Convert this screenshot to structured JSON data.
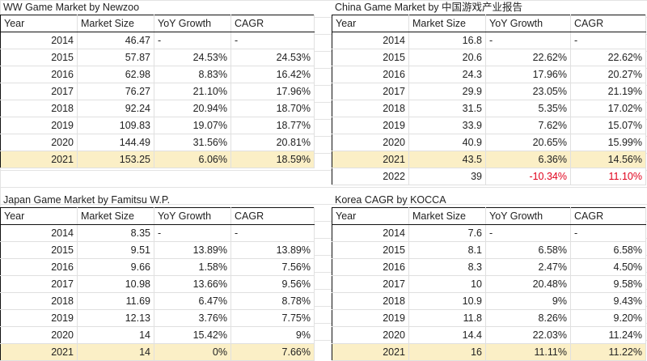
{
  "headers": [
    "Year",
    "Market Size",
    "YoY Growth",
    "CAGR"
  ],
  "tables": {
    "ww": {
      "title": "WW Game Market by Newzoo",
      "rows": [
        [
          "2014",
          "46.47",
          "-",
          "-"
        ],
        [
          "2015",
          "57.87",
          "24.53%",
          "24.53%"
        ],
        [
          "2016",
          "62.98",
          "8.83%",
          "16.42%"
        ],
        [
          "2017",
          "76.27",
          "21.10%",
          "17.96%"
        ],
        [
          "2018",
          "92.24",
          "20.94%",
          "18.70%"
        ],
        [
          "2019",
          "109.83",
          "19.07%",
          "18.77%"
        ],
        [
          "2020",
          "144.49",
          "31.56%",
          "20.81%"
        ],
        [
          "2021",
          "153.25",
          "6.06%",
          "18.59%"
        ]
      ]
    },
    "china": {
      "title": "China Game Market by 中国游戏产业报告",
      "rows": [
        [
          "2014",
          "16.8",
          "-",
          "-"
        ],
        [
          "2015",
          "20.6",
          "22.62%",
          "22.62%"
        ],
        [
          "2016",
          "24.3",
          "17.96%",
          "20.27%"
        ],
        [
          "2017",
          "29.9",
          "23.05%",
          "21.19%"
        ],
        [
          "2018",
          "31.5",
          "5.35%",
          "17.02%"
        ],
        [
          "2019",
          "33.9",
          "7.62%",
          "15.07%"
        ],
        [
          "2020",
          "40.9",
          "20.65%",
          "15.99%"
        ],
        [
          "2021",
          "43.5",
          "6.36%",
          "14.56%"
        ],
        [
          "2022",
          "39",
          "-10.34%",
          "11.10%"
        ]
      ]
    },
    "japan": {
      "title": "Japan Game Market by Famitsu W.P.",
      "rows": [
        [
          "2014",
          "8.35",
          "-",
          "-"
        ],
        [
          "2015",
          "9.51",
          "13.89%",
          "13.89%"
        ],
        [
          "2016",
          "9.66",
          "1.58%",
          "7.56%"
        ],
        [
          "2017",
          "10.98",
          "13.66%",
          "9.56%"
        ],
        [
          "2018",
          "11.69",
          "6.47%",
          "8.78%"
        ],
        [
          "2019",
          "12.13",
          "3.76%",
          "7.75%"
        ],
        [
          "2020",
          "14",
          "15.42%",
          "9%"
        ],
        [
          "2021",
          "14",
          "0%",
          "7.66%"
        ]
      ]
    },
    "korea": {
      "title": "Korea CAGR by KOCCA",
      "rows": [
        [
          "2014",
          "7.6",
          "-",
          "-"
        ],
        [
          "2015",
          "8.1",
          "6.58%",
          "6.58%"
        ],
        [
          "2016",
          "8.3",
          "2.47%",
          "4.50%"
        ],
        [
          "2017",
          "10",
          "20.48%",
          "9.58%"
        ],
        [
          "2018",
          "10.9",
          "9%",
          "9.43%"
        ],
        [
          "2019",
          "11.8",
          "8.26%",
          "9.20%"
        ],
        [
          "2020",
          "14.4",
          "22.03%",
          "11.24%"
        ],
        [
          "2021",
          "16",
          "11.11%",
          "11.22%"
        ]
      ]
    }
  },
  "colors": {
    "highlight_row": "#fbefc6",
    "negative_text": "#e0001b",
    "table_border": "#111111"
  }
}
